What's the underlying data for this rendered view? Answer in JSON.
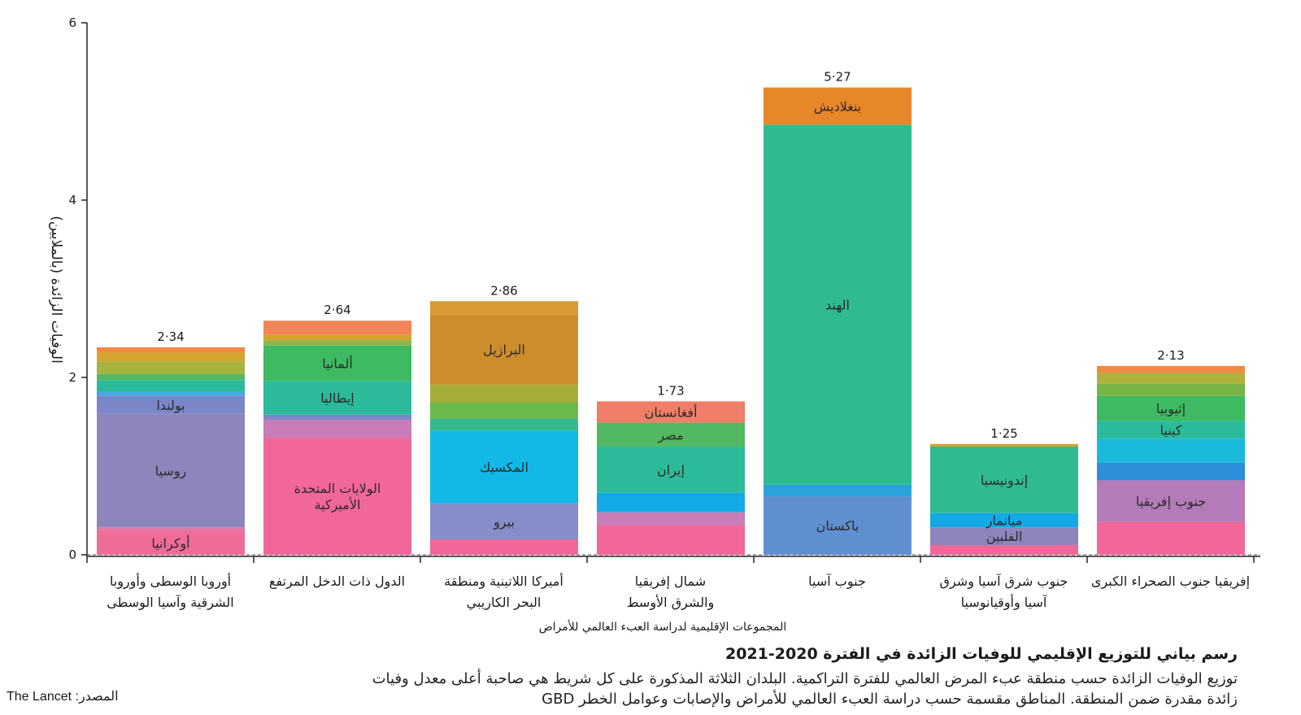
{
  "chart_data": {
    "type": "bar",
    "stacked": true,
    "ylabel": "الوفيات الزائدة (بالملايين)",
    "xlabel": "المجموعات الإقليمية لدراسة العبء العالمي للأمراض",
    "ylim": [
      0,
      6
    ],
    "yticks": [
      0,
      2,
      4,
      6
    ],
    "categories": [
      [
        "أوروبا الوسطى وأوروبا",
        "الشرقية وآسيا الوسطى"
      ],
      [
        "الدول ذات الدخل المرتفع"
      ],
      [
        "أميركا اللاتينية ومنطقة",
        "البحر الكاريبي"
      ],
      [
        "شمال إفريقيا",
        "والشرق الأوسط"
      ],
      [
        "جنوب آسيا"
      ],
      [
        "جنوب شرق آسيا وشرق",
        "آسيا وأوقيانوسيا"
      ],
      [
        "إفريقيا جنوب الصحراء الكبرى"
      ]
    ],
    "totals": [
      "2·34",
      "2·64",
      "2·86",
      "1·73",
      "5·27",
      "1·25",
      "2·13"
    ],
    "bars": [
      {
        "segments": [
          {
            "value": 0.27,
            "color": "#ef6b9a",
            "label": "أوكرانيا"
          },
          {
            "value": 0.04,
            "color": "#e07aa2",
            "label": ""
          },
          {
            "value": 1.28,
            "color": "#8c86bd",
            "label": "روسيا"
          },
          {
            "value": 0.2,
            "color": "#7b86c8",
            "label": "بولندا"
          },
          {
            "value": 0.05,
            "color": "#4aa7e0",
            "label": ""
          },
          {
            "value": 0.13,
            "color": "#2bbb9b",
            "label": ""
          },
          {
            "value": 0.07,
            "color": "#52b962",
            "label": ""
          },
          {
            "value": 0.14,
            "color": "#a7b43f",
            "label": ""
          },
          {
            "value": 0.1,
            "color": "#d4a52e",
            "label": ""
          },
          {
            "value": 0.06,
            "color": "#f08a44",
            "label": ""
          }
        ]
      },
      {
        "segments": [
          {
            "value": 1.32,
            "color": "#f2679a",
            "label": "الولايات المتحدة|الأميركية"
          },
          {
            "value": 0.2,
            "color": "#c97cb7",
            "label": ""
          },
          {
            "value": 0.06,
            "color": "#7b86c8",
            "label": ""
          },
          {
            "value": 0.38,
            "color": "#2bbb9b",
            "label": "إيطاليا"
          },
          {
            "value": 0.4,
            "color": "#3dba62",
            "label": "ألمانيا"
          },
          {
            "value": 0.06,
            "color": "#8db44a",
            "label": ""
          },
          {
            "value": 0.06,
            "color": "#d4a52e",
            "label": ""
          },
          {
            "value": 0.16,
            "color": "#f28555",
            "label": ""
          }
        ]
      },
      {
        "segments": [
          {
            "value": 0.17,
            "color": "#f2679a",
            "label": ""
          },
          {
            "value": 0.41,
            "color": "#858ec8",
            "label": "بيرو"
          },
          {
            "value": 0.82,
            "color": "#12b8e6",
            "label": "المكسيك"
          },
          {
            "value": 0.14,
            "color": "#36b98b",
            "label": ""
          },
          {
            "value": 0.18,
            "color": "#6dba4a",
            "label": ""
          },
          {
            "value": 0.2,
            "color": "#a6ad38",
            "label": ""
          },
          {
            "value": 0.79,
            "color": "#cc8d2a",
            "label": "البرازيل"
          },
          {
            "value": 0.15,
            "color": "#d99a33",
            "label": ""
          }
        ]
      },
      {
        "segments": [
          {
            "value": 0.33,
            "color": "#f2679a",
            "label": ""
          },
          {
            "value": 0.15,
            "color": "#c97cb7",
            "label": ""
          },
          {
            "value": 0.22,
            "color": "#12a9e6",
            "label": ""
          },
          {
            "value": 0.52,
            "color": "#2bbb9b",
            "label": "إيران"
          },
          {
            "value": 0.27,
            "color": "#52b962",
            "label": "مصر"
          },
          {
            "value": 0.24,
            "color": "#f07e68",
            "label": "أفغانستان"
          }
        ]
      },
      {
        "segments": [
          {
            "value": 0.66,
            "color": "#5f8fd0",
            "label": "باكستان"
          },
          {
            "value": 0.13,
            "color": "#2aa3dd",
            "label": ""
          },
          {
            "value": 4.06,
            "color": "#30ba92",
            "label": "الهند"
          },
          {
            "value": 0.42,
            "color": "#e8862a",
            "label": "بنغلاديش"
          }
        ]
      },
      {
        "segments": [
          {
            "value": 0.11,
            "color": "#f2679a",
            "label": ""
          },
          {
            "value": 0.2,
            "color": "#8c86bd",
            "label": "الفلبين"
          },
          {
            "value": 0.16,
            "color": "#12a9e6",
            "label": "ميانمار"
          },
          {
            "value": 0.75,
            "color": "#30ba92",
            "label": "إندونيسيا"
          },
          {
            "value": 0.03,
            "color": "#d4a52e",
            "label": ""
          }
        ]
      },
      {
        "segments": [
          {
            "value": 0.37,
            "color": "#f2679a",
            "label": ""
          },
          {
            "value": 0.47,
            "color": "#b57ab9",
            "label": "جنوب إفريقيا"
          },
          {
            "value": 0.2,
            "color": "#2c8fd9",
            "label": ""
          },
          {
            "value": 0.27,
            "color": "#1ab9d9",
            "label": ""
          },
          {
            "value": 0.2,
            "color": "#2bbb9b",
            "label": "كينيا"
          },
          {
            "value": 0.28,
            "color": "#3dba62",
            "label": "إثيوبيا"
          },
          {
            "value": 0.14,
            "color": "#79b447",
            "label": ""
          },
          {
            "value": 0.12,
            "color": "#b0b23e",
            "label": ""
          },
          {
            "value": 0.08,
            "color": "#f08a44",
            "label": ""
          }
        ]
      }
    ]
  },
  "caption": {
    "title": "رسم بياني للتوزيع الإقليمي للوفيات الزائدة في الفترة 2020-2021",
    "description": "توزيع الوفيات الزائدة حسب منطقة عبء المرض العالمي للفترة التراكمية. البلدان الثلاثة المذكورة على كل شريط هي صاحبة أعلى معدل وفيات زائدة مقدرة ضمن المنطقة. المناطق مقسمة حسب دراسة العبء العالمي للأمراض والإصابات وعوامل الخطر GBD",
    "source": "المصدر: The Lancet"
  }
}
